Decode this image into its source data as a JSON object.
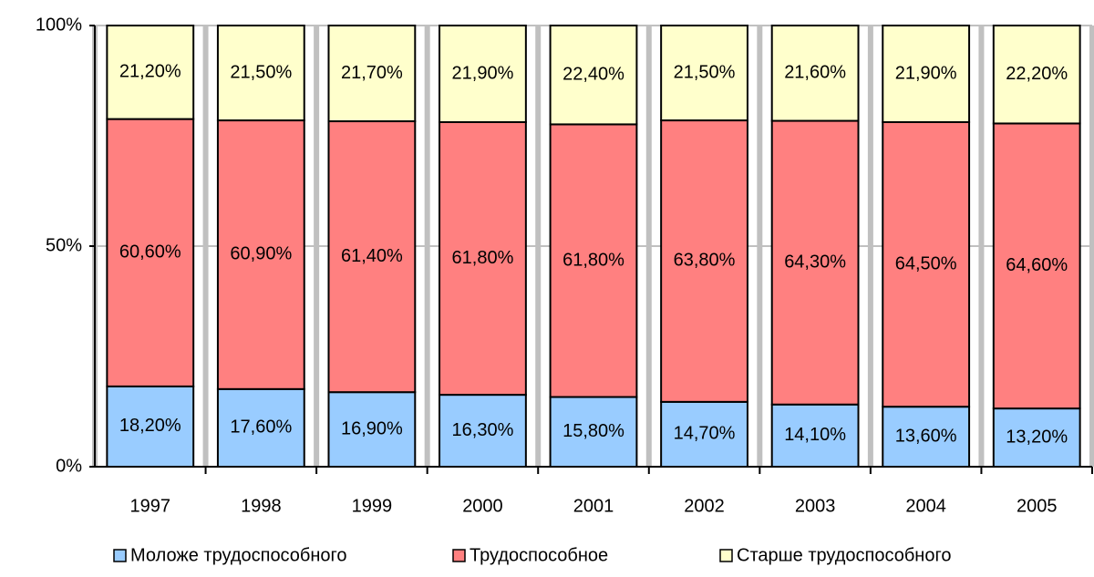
{
  "chart_data": {
    "type": "bar",
    "stacked": true,
    "categories": [
      "1997",
      "1998",
      "1999",
      "2000",
      "2001",
      "2002",
      "2003",
      "2004",
      "2005"
    ],
    "series": [
      {
        "name": "Моложе трудоспособного",
        "color": "#99ccff",
        "values": [
          18.2,
          17.6,
          16.9,
          16.3,
          15.8,
          14.7,
          14.1,
          13.6,
          13.2
        ],
        "value_labels": [
          "18,20%",
          "17,60%",
          "16,90%",
          "16,30%",
          "15,80%",
          "14,70%",
          "14,10%",
          "13,60%",
          "13,20%"
        ]
      },
      {
        "name": "Трудоспособное",
        "color": "#ff8080",
        "values": [
          60.6,
          60.9,
          61.4,
          61.8,
          61.8,
          63.8,
          64.3,
          64.5,
          64.6
        ],
        "value_labels": [
          "60,60%",
          "60,90%",
          "61,40%",
          "61,80%",
          "61,80%",
          "63,80%",
          "64,30%",
          "64,50%",
          "64,60%"
        ]
      },
      {
        "name": "Старше трудоспособного",
        "color": "#ffffcc",
        "values": [
          21.2,
          21.5,
          21.7,
          21.9,
          22.4,
          21.5,
          21.6,
          21.9,
          22.2
        ],
        "value_labels": [
          "21,20%",
          "21,50%",
          "21,70%",
          "21,90%",
          "22,40%",
          "21,50%",
          "21,60%",
          "21,90%",
          "22,20%"
        ]
      }
    ],
    "ylim": [
      0,
      100
    ],
    "yticks": [
      {
        "value": 0,
        "label": "0%"
      },
      {
        "value": 50,
        "label": "50%"
      },
      {
        "value": 100,
        "label": "100%"
      }
    ],
    "grid": true,
    "legend": "bottom"
  }
}
